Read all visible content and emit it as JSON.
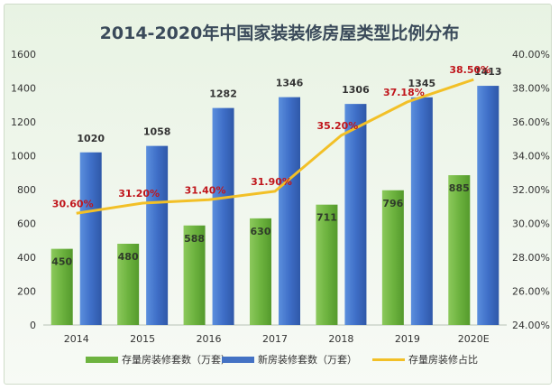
{
  "chart_data": {
    "type": "bar",
    "title": "2014-2020年中国家装装修房屋类型比例分布",
    "categories": [
      "2014",
      "2015",
      "2016",
      "2017",
      "2018",
      "2019",
      "2020E"
    ],
    "series": [
      {
        "name": "存量房装修套数（万套）",
        "type": "bar",
        "axis": "left",
        "color": "#6db33f",
        "values": [
          450,
          480,
          588,
          630,
          711,
          796,
          885
        ]
      },
      {
        "name": "新房装修套数（万套）",
        "type": "bar",
        "axis": "left",
        "color": "#4472c4",
        "values": [
          1020,
          1058,
          1282,
          1346,
          1306,
          1345,
          1413
        ]
      },
      {
        "name": "存量房装修占比",
        "type": "line",
        "axis": "right",
        "color": "#f2c027",
        "values": [
          30.6,
          31.2,
          31.4,
          31.9,
          35.2,
          37.18,
          38.5
        ]
      }
    ],
    "line_labels": [
      "30.60%",
      "31.20%",
      "31.40%",
      "31.90%",
      "35.20%",
      "37.18%",
      "38.50%"
    ],
    "y_left": {
      "min": 0,
      "max": 1600,
      "ticks": [
        "0",
        "200",
        "400",
        "600",
        "800",
        "1000",
        "1200",
        "1400",
        "1600"
      ]
    },
    "y_right": {
      "min": 24,
      "max": 40,
      "ticks": [
        "24.00%",
        "26.00%",
        "28.00%",
        "30.00%",
        "32.00%",
        "34.00%",
        "36.00%",
        "38.00%",
        "40.00%"
      ]
    },
    "grid": false,
    "legend_position": "bottom"
  }
}
